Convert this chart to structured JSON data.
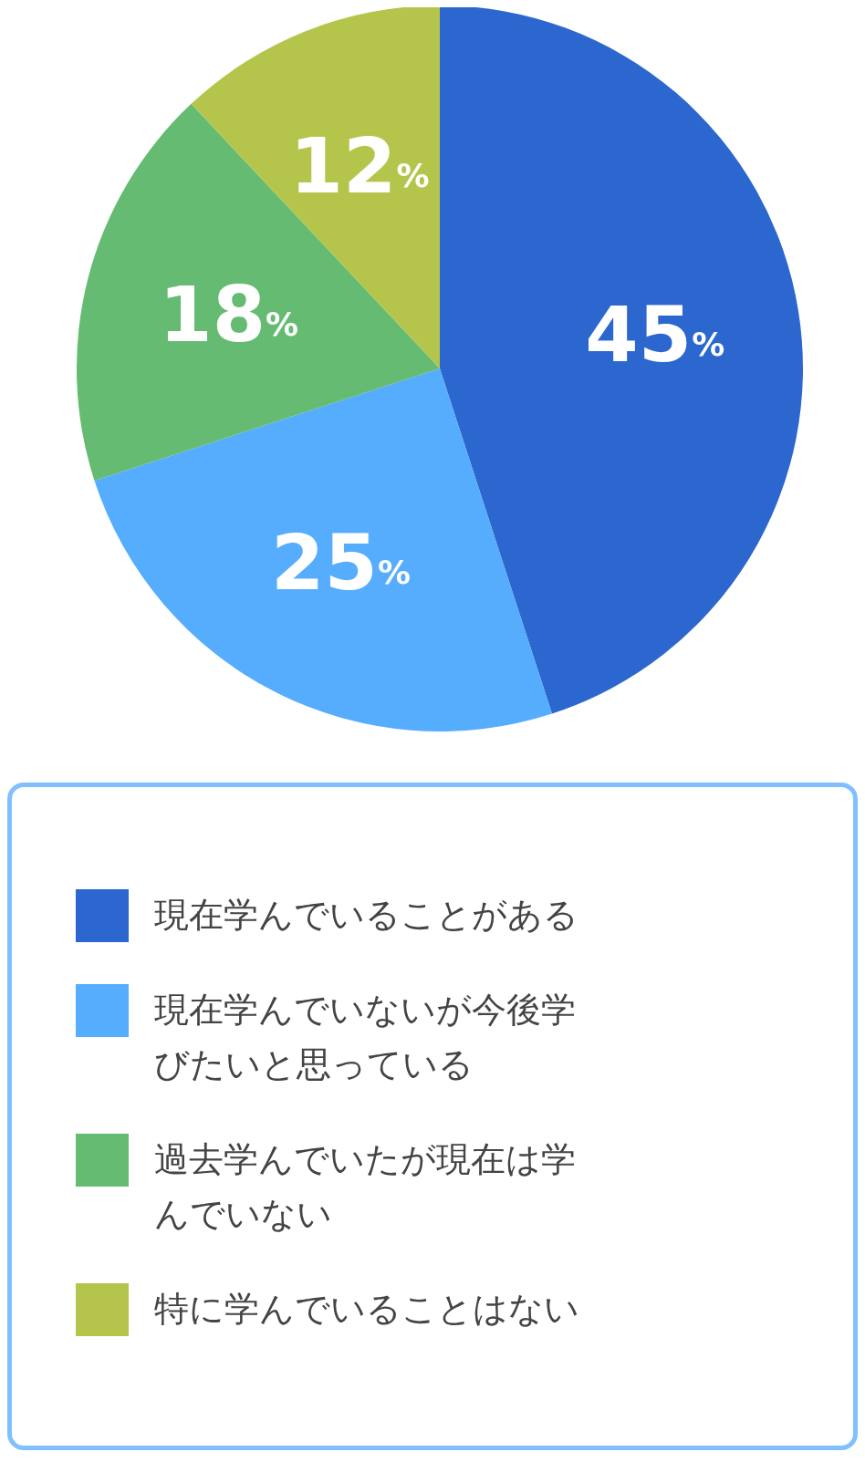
{
  "chart_data": {
    "type": "pie",
    "categories": [
      "現在学んでいることがある",
      "現在学んでいないが今後学びたいと思っている",
      "過去学んでいたが現在は学んでいない",
      "特に学んでいることはない"
    ],
    "values": [
      45,
      25,
      18,
      12
    ],
    "colors": [
      "#2b67cf",
      "#56acfd",
      "#65bb72",
      "#b5c54c"
    ],
    "value_labels": [
      "45%",
      "25%",
      "18%",
      "12%"
    ],
    "legend": "bottom"
  }
}
